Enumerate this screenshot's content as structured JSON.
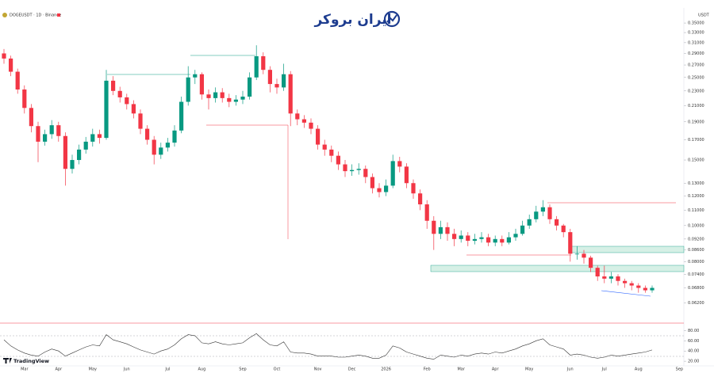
{
  "header": {
    "symbol": "DOGEUSDT · 1D · Binance",
    "watermark": "ایران بروکر",
    "currency": "USDT"
  },
  "footer": {
    "brand": "TradingView"
  },
  "chart_data": [
    {
      "type": "candlestick",
      "log_scale": true,
      "grid": false,
      "up_color": "#089981",
      "down_color": "#f23645",
      "ylim": [
        0.0555,
        0.375
      ],
      "yticks": [
        {
          "value": 0.35,
          "label": "0.35000"
        },
        {
          "value": 0.33,
          "label": "0.33000"
        },
        {
          "value": 0.31,
          "label": "0.31000"
        },
        {
          "value": 0.29,
          "label": "0.29000"
        },
        {
          "value": 0.27,
          "label": "0.27000"
        },
        {
          "value": 0.25,
          "label": "0.25000"
        },
        {
          "value": 0.23,
          "label": "0.23000"
        },
        {
          "value": 0.21,
          "label": "0.21000"
        },
        {
          "value": 0.19,
          "label": "0.19000"
        },
        {
          "value": 0.17,
          "label": "0.17000"
        },
        {
          "value": 0.15,
          "label": "0.15000"
        },
        {
          "value": 0.13,
          "label": "0.13000"
        },
        {
          "value": 0.12,
          "label": "0.12000"
        },
        {
          "value": 0.11,
          "label": "0.11000"
        },
        {
          "value": 0.1,
          "label": "0.10000"
        },
        {
          "value": 0.092,
          "label": "0.09200"
        },
        {
          "value": 0.086,
          "label": "0.08600"
        },
        {
          "value": 0.08,
          "label": "0.08000"
        },
        {
          "value": 0.074,
          "label": "0.07400"
        },
        {
          "value": 0.068,
          "label": "0.06800"
        },
        {
          "value": 0.062,
          "label": "0.06200"
        }
      ],
      "categories": [
        null,
        null,
        null,
        "Mar",
        null,
        null,
        null,
        null,
        "Apr",
        null,
        null,
        null,
        null,
        "May",
        null,
        null,
        null,
        null,
        "Jun",
        null,
        null,
        null,
        null,
        null,
        "Jul",
        null,
        null,
        null,
        null,
        "Aug",
        null,
        null,
        null,
        null,
        null,
        "Sep",
        null,
        null,
        null,
        null,
        "Oct",
        null,
        null,
        null,
        null,
        null,
        "Nov",
        null,
        null,
        null,
        null,
        "Dec",
        null,
        null,
        null,
        null,
        "2026",
        null,
        null,
        null,
        null,
        null,
        "Feb",
        null,
        null,
        null,
        null,
        "Mar",
        null,
        null,
        null,
        null,
        "Apr",
        null,
        null,
        null,
        null,
        "May",
        null,
        null,
        null,
        null,
        null,
        "Jun",
        null,
        null,
        null,
        null,
        "Jul",
        null,
        null,
        null,
        null,
        "Aug",
        null,
        null,
        null,
        null,
        null,
        "Sep"
      ],
      "open": [
        0.29,
        0.281,
        0.259,
        0.232,
        0.207,
        0.185,
        0.168,
        0.176,
        0.186,
        0.174,
        0.142,
        0.15,
        0.16,
        0.168,
        0.176,
        0.172,
        0.245,
        0.23,
        0.221,
        0.212,
        0.2,
        0.182,
        0.17,
        0.155,
        0.162,
        0.167,
        0.18,
        0.215,
        0.25,
        0.255,
        0.225,
        0.22,
        0.228,
        0.22,
        0.215,
        0.218,
        0.222,
        0.25,
        0.285,
        0.262,
        0.24,
        0.235,
        0.255,
        0.2,
        0.193,
        0.189,
        0.182,
        0.165,
        0.16,
        0.154,
        0.146,
        0.14,
        0.141,
        0.142,
        0.135,
        0.126,
        0.123,
        0.128,
        0.149,
        0.144,
        0.13,
        0.122,
        0.114,
        0.103,
        0.095,
        0.099,
        0.095,
        0.092,
        0.094,
        0.091,
        0.092,
        0.093,
        0.09,
        0.092,
        0.09,
        0.093,
        0.095,
        0.1,
        0.104,
        0.109,
        0.112,
        0.104,
        0.1,
        0.096,
        0.084,
        0.084,
        0.082,
        0.077,
        0.073,
        0.072,
        0.073,
        0.071,
        0.07,
        0.069,
        0.068,
        0.067,
        null,
        null,
        null,
        null
      ],
      "high": [
        0.298,
        0.286,
        0.264,
        0.238,
        0.212,
        0.19,
        0.181,
        0.192,
        0.19,
        0.178,
        0.155,
        0.165,
        0.173,
        0.182,
        0.181,
        0.262,
        0.252,
        0.236,
        0.226,
        0.217,
        0.205,
        0.186,
        0.174,
        0.167,
        0.172,
        0.186,
        0.222,
        0.268,
        0.262,
        0.258,
        0.232,
        0.235,
        0.234,
        0.226,
        0.224,
        0.23,
        0.258,
        0.305,
        0.292,
        0.268,
        0.248,
        0.272,
        0.26,
        0.205,
        0.198,
        0.194,
        0.186,
        0.17,
        0.164,
        0.158,
        0.15,
        0.146,
        0.147,
        0.145,
        0.138,
        0.13,
        0.133,
        0.155,
        0.153,
        0.147,
        0.133,
        0.125,
        0.117,
        0.106,
        0.103,
        0.102,
        0.098,
        0.097,
        0.096,
        0.095,
        0.096,
        0.095,
        0.094,
        0.094,
        0.096,
        0.098,
        0.103,
        0.107,
        0.113,
        0.117,
        0.114,
        0.106,
        0.101,
        0.098,
        0.088,
        0.086,
        0.083,
        0.078,
        0.078,
        0.075,
        0.074,
        0.072,
        0.071,
        0.07,
        0.069,
        0.069,
        null,
        null,
        null,
        null
      ],
      "low": [
        0.272,
        0.252,
        0.226,
        0.2,
        0.178,
        0.148,
        0.164,
        0.171,
        0.168,
        0.128,
        0.138,
        0.146,
        0.156,
        0.163,
        0.166,
        0.17,
        0.224,
        0.214,
        0.205,
        0.194,
        0.176,
        0.165,
        0.146,
        0.151,
        0.158,
        0.163,
        0.177,
        0.21,
        0.24,
        0.218,
        0.205,
        0.214,
        0.214,
        0.208,
        0.21,
        0.212,
        0.218,
        0.246,
        0.255,
        0.228,
        0.226,
        0.23,
        0.185,
        0.186,
        0.183,
        0.176,
        0.16,
        0.154,
        0.148,
        0.141,
        0.135,
        0.136,
        0.137,
        0.13,
        0.122,
        0.119,
        0.12,
        0.126,
        0.139,
        0.126,
        0.118,
        0.11,
        0.098,
        0.086,
        0.092,
        0.091,
        0.088,
        0.09,
        0.088,
        0.089,
        0.09,
        0.088,
        0.088,
        0.088,
        0.089,
        0.091,
        0.094,
        0.098,
        0.102,
        0.106,
        0.101,
        0.097,
        0.093,
        0.08,
        0.081,
        0.079,
        0.075,
        0.071,
        0.07,
        0.07,
        0.069,
        0.068,
        0.067,
        0.066,
        0.066,
        0.066,
        null,
        null,
        null,
        null
      ],
      "close": [
        0.281,
        0.259,
        0.232,
        0.207,
        0.185,
        0.168,
        0.176,
        0.186,
        0.174,
        0.142,
        0.15,
        0.16,
        0.168,
        0.176,
        0.172,
        0.245,
        0.23,
        0.221,
        0.212,
        0.2,
        0.182,
        0.17,
        0.155,
        0.162,
        0.167,
        0.18,
        0.215,
        0.25,
        0.255,
        0.225,
        0.22,
        0.228,
        0.22,
        0.215,
        0.218,
        0.222,
        0.25,
        0.285,
        0.262,
        0.24,
        0.235,
        0.255,
        0.2,
        0.193,
        0.189,
        0.182,
        0.165,
        0.16,
        0.154,
        0.146,
        0.14,
        0.141,
        0.142,
        0.135,
        0.126,
        0.123,
        0.128,
        0.149,
        0.144,
        0.13,
        0.122,
        0.114,
        0.103,
        0.095,
        0.099,
        0.095,
        0.092,
        0.094,
        0.091,
        0.092,
        0.093,
        0.09,
        0.092,
        0.09,
        0.093,
        0.095,
        0.1,
        0.104,
        0.109,
        0.112,
        0.104,
        0.1,
        0.096,
        0.084,
        0.084,
        0.082,
        0.077,
        0.073,
        0.072,
        0.073,
        0.071,
        0.07,
        0.069,
        0.068,
        0.067,
        0.068,
        null,
        null,
        null,
        null
      ]
    },
    {
      "type": "line",
      "color": "#333333",
      "ylim": [
        14,
        90
      ],
      "yticks": [
        {
          "value": 80,
          "label": "80.00"
        },
        {
          "value": 60,
          "label": "60.00"
        },
        {
          "value": 40,
          "label": "40.00"
        },
        {
          "value": 20,
          "label": "20.00"
        }
      ],
      "values": [
        62,
        50,
        42,
        36,
        32,
        30,
        38,
        44,
        40,
        30,
        36,
        42,
        48,
        52,
        50,
        72,
        62,
        58,
        54,
        48,
        42,
        38,
        34,
        40,
        44,
        52,
        64,
        72,
        70,
        56,
        54,
        58,
        54,
        52,
        54,
        56,
        66,
        74,
        62,
        52,
        50,
        58,
        38,
        36,
        36,
        34,
        30,
        30,
        30,
        28,
        28,
        30,
        32,
        30,
        26,
        26,
        32,
        50,
        46,
        38,
        34,
        30,
        26,
        24,
        32,
        30,
        28,
        32,
        30,
        34,
        36,
        34,
        38,
        36,
        40,
        44,
        50,
        54,
        60,
        64,
        52,
        48,
        44,
        32,
        34,
        32,
        28,
        26,
        28,
        32,
        30,
        32,
        34,
        36,
        38,
        42,
        null,
        null,
        null,
        null
      ]
    }
  ]
}
